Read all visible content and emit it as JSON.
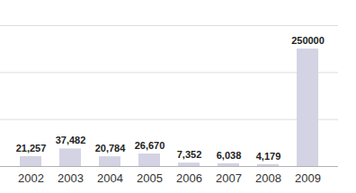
{
  "chart_data": {
    "type": "bar",
    "categories": [
      "2002",
      "2003",
      "2004",
      "2005",
      "2006",
      "2007",
      "2008",
      "2009"
    ],
    "values": [
      21257,
      37482,
      20784,
      26670,
      7352,
      6038,
      4179,
      250000
    ],
    "value_labels": [
      "21,257",
      "37,482",
      "20,784",
      "26,670",
      "7,352",
      "6,038",
      "4,179",
      "250000"
    ],
    "color": "#d3d3e3",
    "ylim": [
      0,
      300000
    ],
    "yticks": [
      0,
      100000,
      200000,
      300000
    ],
    "grid": true,
    "data_labels": true,
    "tick_labels": "x"
  }
}
